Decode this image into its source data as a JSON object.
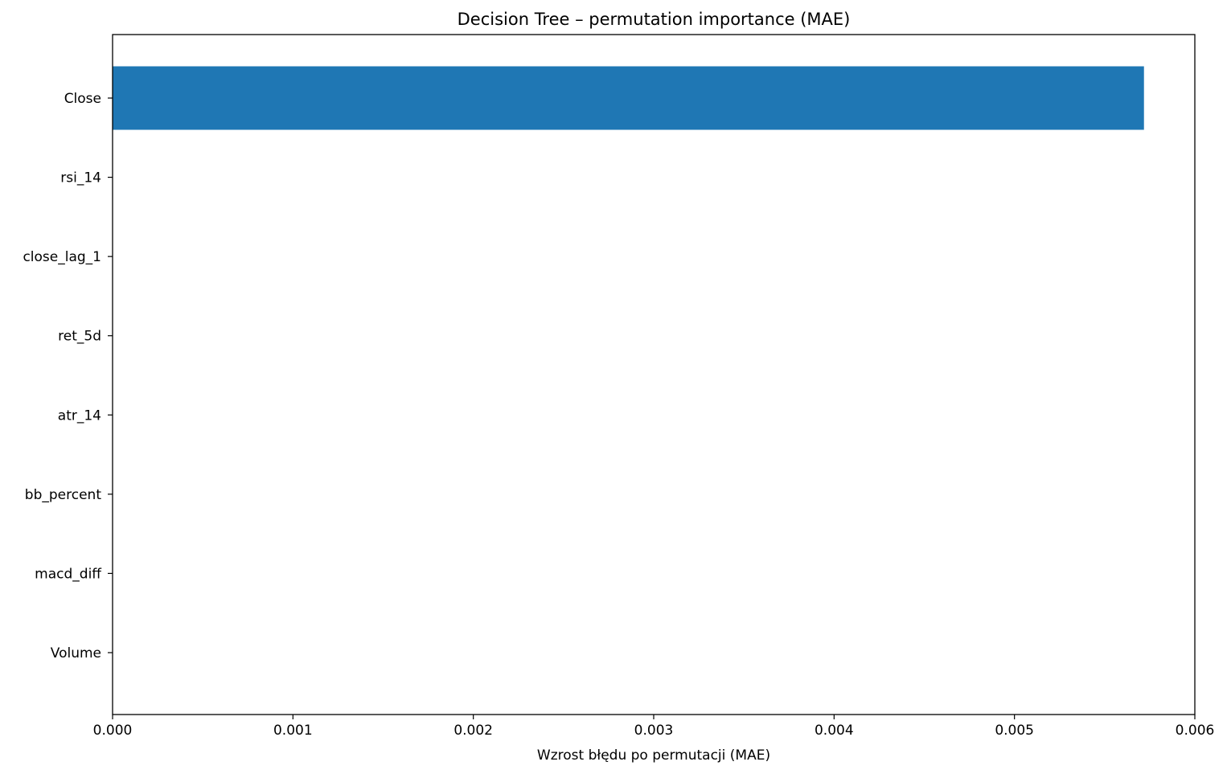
{
  "chart_data": {
    "type": "bar",
    "orientation": "horizontal",
    "title": "Decision Tree – permutation importance (MAE)",
    "xlabel": "Wzrost błędu po permutacji (MAE)",
    "ylabel": "",
    "categories": [
      "Close",
      "rsi_14",
      "close_lag_1",
      "ret_5d",
      "atr_14",
      "bb_percent",
      "macd_diff",
      "Volume"
    ],
    "values": [
      0.005718,
      0,
      0,
      0,
      0,
      0,
      0,
      0
    ],
    "xlim": [
      0,
      0.006
    ],
    "xticks": [
      "0.000",
      "0.001",
      "0.002",
      "0.003",
      "0.004",
      "0.005",
      "0.006"
    ],
    "bar_color": "#1f77b4",
    "grid": false,
    "legend": "none"
  }
}
